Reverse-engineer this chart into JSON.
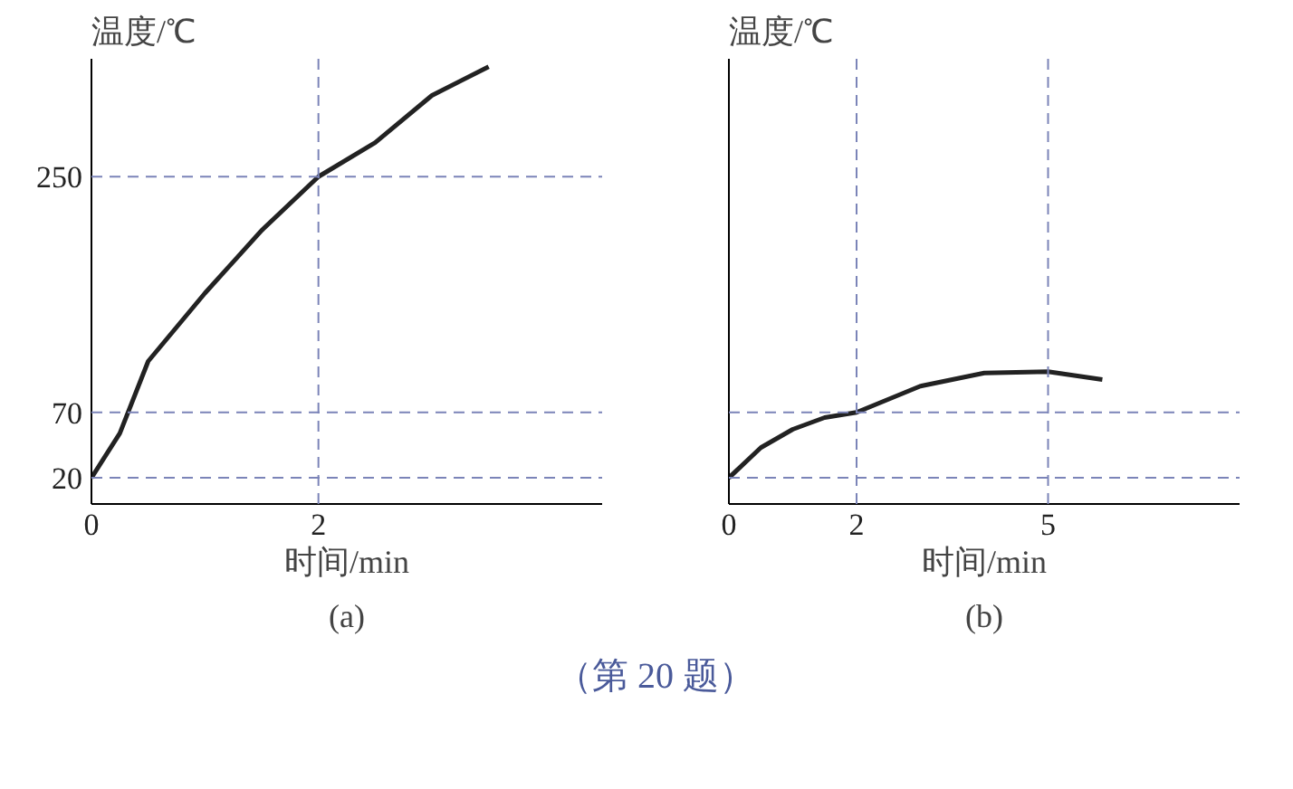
{
  "chart_data": [
    {
      "type": "line",
      "title": "(a)",
      "xlabel": "时间/min",
      "ylabel": "温度/℃",
      "x": [
        0,
        0.25,
        0.5,
        1,
        1.5,
        2,
        2.5,
        3,
        3.5
      ],
      "series": [
        {
          "color": "#222222",
          "values": [
            20,
            54,
            109,
            161,
            209,
            250,
            276,
            312,
            334
          ]
        }
      ],
      "xlim": [
        0,
        4.5
      ],
      "ylim": [
        0,
        340
      ],
      "xticks": [
        0,
        2
      ],
      "yticks": [
        20,
        70,
        250
      ],
      "grid": false,
      "marker": "none",
      "line_style": "solid",
      "ref_lines": [
        {
          "axis": "y",
          "value": 250,
          "color": "#7b84b8",
          "line_style": "dashed"
        },
        {
          "axis": "y",
          "value": 70,
          "color": "#7b84b8",
          "line_style": "dashed"
        },
        {
          "axis": "y",
          "value": 20,
          "color": "#7b84b8",
          "line_style": "dashed"
        },
        {
          "axis": "x",
          "value": 2,
          "color": "#7b84b8",
          "line_style": "dashed"
        }
      ],
      "annotations": [
        "（第 20 题）"
      ]
    },
    {
      "type": "line",
      "title": "(b)",
      "xlabel": "时间/min",
      "ylabel": "温度/℃",
      "x": [
        0,
        0.5,
        1,
        1.5,
        2,
        3,
        4,
        5,
        5.85
      ],
      "series": [
        {
          "color": "#222222",
          "values": [
            20,
            43,
            57,
            66,
            70,
            90,
            100,
            101,
            95
          ]
        }
      ],
      "xlim": [
        0,
        8
      ],
      "ylim": [
        0,
        340
      ],
      "xticks": [
        0,
        2,
        5
      ],
      "yticks": [
        20,
        70,
        250
      ],
      "tick_labels": "x",
      "grid": false,
      "marker": "none",
      "line_style": "solid",
      "ref_lines": [
        {
          "axis": "y",
          "value": 70,
          "color": "#7b84b8",
          "line_style": "dashed"
        },
        {
          "axis": "y",
          "value": 20,
          "color": "#7b84b8",
          "line_style": "dashed"
        },
        {
          "axis": "x",
          "value": 2,
          "color": "#7b84b8",
          "line_style": "dashed"
        },
        {
          "axis": "x",
          "value": 5,
          "color": "#7b84b8",
          "line_style": "dashed"
        }
      ]
    }
  ]
}
